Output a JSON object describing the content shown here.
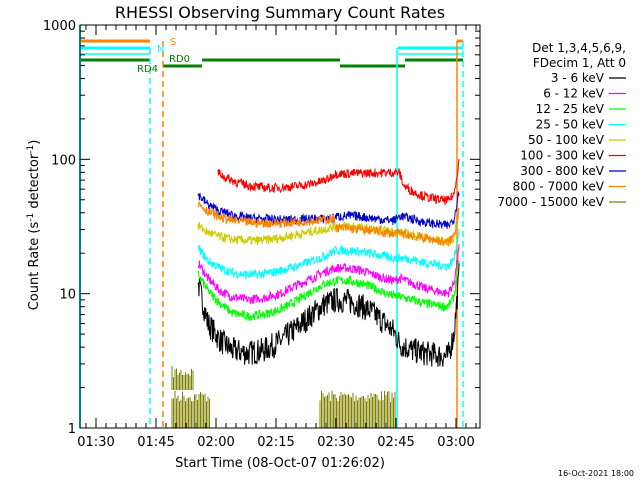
{
  "chart_data": {
    "type": "line",
    "title": "RHESSI Observing Summary Count Rates",
    "xlabel": "Start Time (08-Oct-07 01:26:02)",
    "ylabel": "Count Rate (s",
    "ylabel_sup1": "-1",
    "ylabel_mid": " detector",
    "ylabel_sup2": "-1",
    "ylabel_end": ")",
    "y_scale": "log",
    "ylim": [
      1,
      1000
    ],
    "xlim_minutes": [
      86.0,
      186.0
    ],
    "x_ticks": [
      {
        "t": 90,
        "label": "01:30"
      },
      {
        "t": 105,
        "label": "01:45"
      },
      {
        "t": 120,
        "label": "02:00"
      },
      {
        "t": 135,
        "label": "02:15"
      },
      {
        "t": 150,
        "label": "02:30"
      },
      {
        "t": 165,
        "label": "02:45"
      },
      {
        "t": 180,
        "label": "03:00"
      }
    ],
    "y_ticks": [
      {
        "v": 1,
        "label": "1"
      },
      {
        "v": 10,
        "label": "10"
      },
      {
        "v": 100,
        "label": "100"
      },
      {
        "v": 1000,
        "label": "1000"
      }
    ],
    "legend_position": "right",
    "legend_header": [
      "Det 1,3,4,5,6,9,",
      "FDecim 1, Att 0"
    ],
    "series": [
      {
        "name": "3 - 6 keV",
        "color": "#000000",
        "points": [
          [
            115.5,
            12
          ],
          [
            118,
            6
          ],
          [
            121,
            4.5
          ],
          [
            124,
            3.8
          ],
          [
            128,
            3.6
          ],
          [
            132,
            3.8
          ],
          [
            136,
            4.4
          ],
          [
            140,
            5.5
          ],
          [
            144,
            7
          ],
          [
            147,
            8.3
          ],
          [
            150,
            9
          ],
          [
            153,
            8.8
          ],
          [
            156,
            8.2
          ],
          [
            159,
            7.3
          ],
          [
            162,
            6.1
          ],
          [
            164.5,
            5.2
          ],
          [
            166,
            4.2
          ],
          [
            169,
            3.8
          ],
          [
            172,
            3.6
          ],
          [
            175,
            3.5
          ],
          [
            178,
            3.4
          ],
          [
            179.5,
            5
          ],
          [
            180.8,
            14
          ]
        ]
      },
      {
        "name": "6 - 12 keV",
        "color": "#ff00ff",
        "points": [
          [
            115.5,
            17
          ],
          [
            118,
            13
          ],
          [
            121,
            10.5
          ],
          [
            124,
            9.5
          ],
          [
            128,
            9
          ],
          [
            132,
            9.3
          ],
          [
            136,
            10
          ],
          [
            140,
            11.5
          ],
          [
            144,
            13
          ],
          [
            147,
            14.5
          ],
          [
            150,
            15.5
          ],
          [
            153,
            15.5
          ],
          [
            156,
            15
          ],
          [
            159,
            14
          ],
          [
            162,
            13
          ],
          [
            164.5,
            12.5
          ],
          [
            166,
            13
          ],
          [
            169,
            12
          ],
          [
            172,
            11
          ],
          [
            175,
            10.5
          ],
          [
            178,
            10
          ],
          [
            179.5,
            12
          ],
          [
            180.8,
            22
          ]
        ]
      },
      {
        "name": "12 - 25 keV",
        "color": "#00ff00",
        "points": [
          [
            115.5,
            14
          ],
          [
            118,
            10.5
          ],
          [
            121,
            8.5
          ],
          [
            124,
            7.2
          ],
          [
            128,
            6.8
          ],
          [
            132,
            7
          ],
          [
            136,
            7.6
          ],
          [
            140,
            8.8
          ],
          [
            144,
            10.5
          ],
          [
            147,
            11.8
          ],
          [
            150,
            12.5
          ],
          [
            153,
            12.5
          ],
          [
            156,
            12
          ],
          [
            159,
            11.2
          ],
          [
            162,
            10.2
          ],
          [
            164.5,
            9.6
          ],
          [
            166,
            9.5
          ],
          [
            169,
            9
          ],
          [
            172,
            8.5
          ],
          [
            175,
            8.2
          ],
          [
            178,
            8
          ],
          [
            179.5,
            9.5
          ],
          [
            180.8,
            18
          ]
        ]
      },
      {
        "name": "25 - 50 keV",
        "color": "#00ffff",
        "points": [
          [
            115.5,
            22
          ],
          [
            118,
            17.5
          ],
          [
            121,
            15.5
          ],
          [
            124,
            14.3
          ],
          [
            128,
            13.8
          ],
          [
            132,
            14
          ],
          [
            136,
            14.8
          ],
          [
            140,
            16
          ],
          [
            144,
            17.5
          ],
          [
            147,
            19
          ],
          [
            150,
            21
          ],
          [
            153,
            21
          ],
          [
            156,
            20.5
          ],
          [
            159,
            19.8
          ],
          [
            162,
            19
          ],
          [
            164.5,
            18.5
          ],
          [
            166,
            18.5
          ],
          [
            169,
            18
          ],
          [
            172,
            17
          ],
          [
            175,
            16.5
          ],
          [
            178,
            16
          ],
          [
            179.5,
            18
          ],
          [
            180.8,
            30
          ]
        ]
      },
      {
        "name": "50 - 100 keV",
        "color": "#cccc00",
        "points": [
          [
            115.5,
            32
          ],
          [
            118,
            28.5
          ],
          [
            121,
            26.5
          ],
          [
            124,
            25.3
          ],
          [
            128,
            24.8
          ],
          [
            132,
            25
          ],
          [
            136,
            26
          ],
          [
            140,
            27.5
          ],
          [
            144,
            29
          ],
          [
            147,
            30
          ],
          [
            150,
            32
          ],
          [
            153,
            32
          ],
          [
            156,
            31
          ],
          [
            159,
            30
          ],
          [
            162,
            29.5
          ],
          [
            164.5,
            29
          ],
          [
            166,
            28.5
          ],
          [
            169,
            27.5
          ],
          [
            172,
            26
          ],
          [
            175,
            25
          ],
          [
            178,
            24
          ],
          [
            179.5,
            26
          ],
          [
            180.8,
            40
          ]
        ]
      },
      {
        "name": "100 - 300 keV",
        "color": "#ff0000",
        "points": [
          [
            120.5,
            80
          ],
          [
            122,
            74
          ],
          [
            125,
            68
          ],
          [
            128,
            64
          ],
          [
            131,
            62
          ],
          [
            134,
            61
          ],
          [
            137,
            62
          ],
          [
            140,
            63
          ],
          [
            143,
            65
          ],
          [
            146,
            68
          ],
          [
            148,
            71
          ],
          [
            149.5,
            78
          ],
          [
            165.8,
            80
          ],
          [
            167,
            63
          ],
          [
            170,
            56
          ],
          [
            173,
            52
          ],
          [
            176,
            50
          ],
          [
            178,
            49
          ],
          [
            179.5,
            55
          ],
          [
            180.8,
            100
          ]
        ]
      },
      {
        "name": "300 - 800 keV",
        "color": "#0000cc",
        "points": [
          [
            115.5,
            55
          ],
          [
            118,
            46
          ],
          [
            121,
            41
          ],
          [
            124,
            38.5
          ],
          [
            128,
            36.5
          ],
          [
            132,
            36
          ],
          [
            136,
            35.5
          ],
          [
            140,
            35.5
          ],
          [
            144,
            36
          ],
          [
            147,
            36
          ],
          [
            149.5,
            36.5
          ],
          [
            150,
            37.5
          ],
          [
            153,
            38
          ],
          [
            156,
            37.5
          ],
          [
            159,
            36.5
          ],
          [
            162,
            35.5
          ],
          [
            164.5,
            35
          ],
          [
            166,
            38
          ],
          [
            169,
            36
          ],
          [
            172,
            34
          ],
          [
            175,
            33
          ],
          [
            178,
            32
          ],
          [
            179.5,
            36
          ],
          [
            180.8,
            60
          ]
        ]
      },
      {
        "name": "800 - 7000 keV",
        "color": "#ff8000",
        "points": [
          [
            115.5,
            47
          ],
          [
            118,
            41
          ],
          [
            121,
            37
          ],
          [
            124,
            35
          ],
          [
            128,
            34
          ],
          [
            132,
            33.5
          ],
          [
            136,
            33.5
          ],
          [
            140,
            34
          ],
          [
            144,
            35
          ],
          [
            147,
            35.5
          ],
          [
            149.5,
            36
          ],
          [
            150,
            31
          ],
          [
            153,
            30.5
          ],
          [
            156,
            30
          ],
          [
            159,
            29.5
          ],
          [
            162,
            28.5
          ],
          [
            164.5,
            28
          ],
          [
            166,
            28
          ],
          [
            169,
            27
          ],
          [
            172,
            26
          ],
          [
            175,
            25
          ],
          [
            178,
            24
          ],
          [
            179.5,
            27
          ],
          [
            180.8,
            45
          ]
        ]
      },
      {
        "name": "7000 - 15000 keV",
        "color": "#808000",
        "points": []
      }
    ],
    "annotations": [
      "S",
      "N",
      "RD0",
      "RD4"
    ]
  }
}
